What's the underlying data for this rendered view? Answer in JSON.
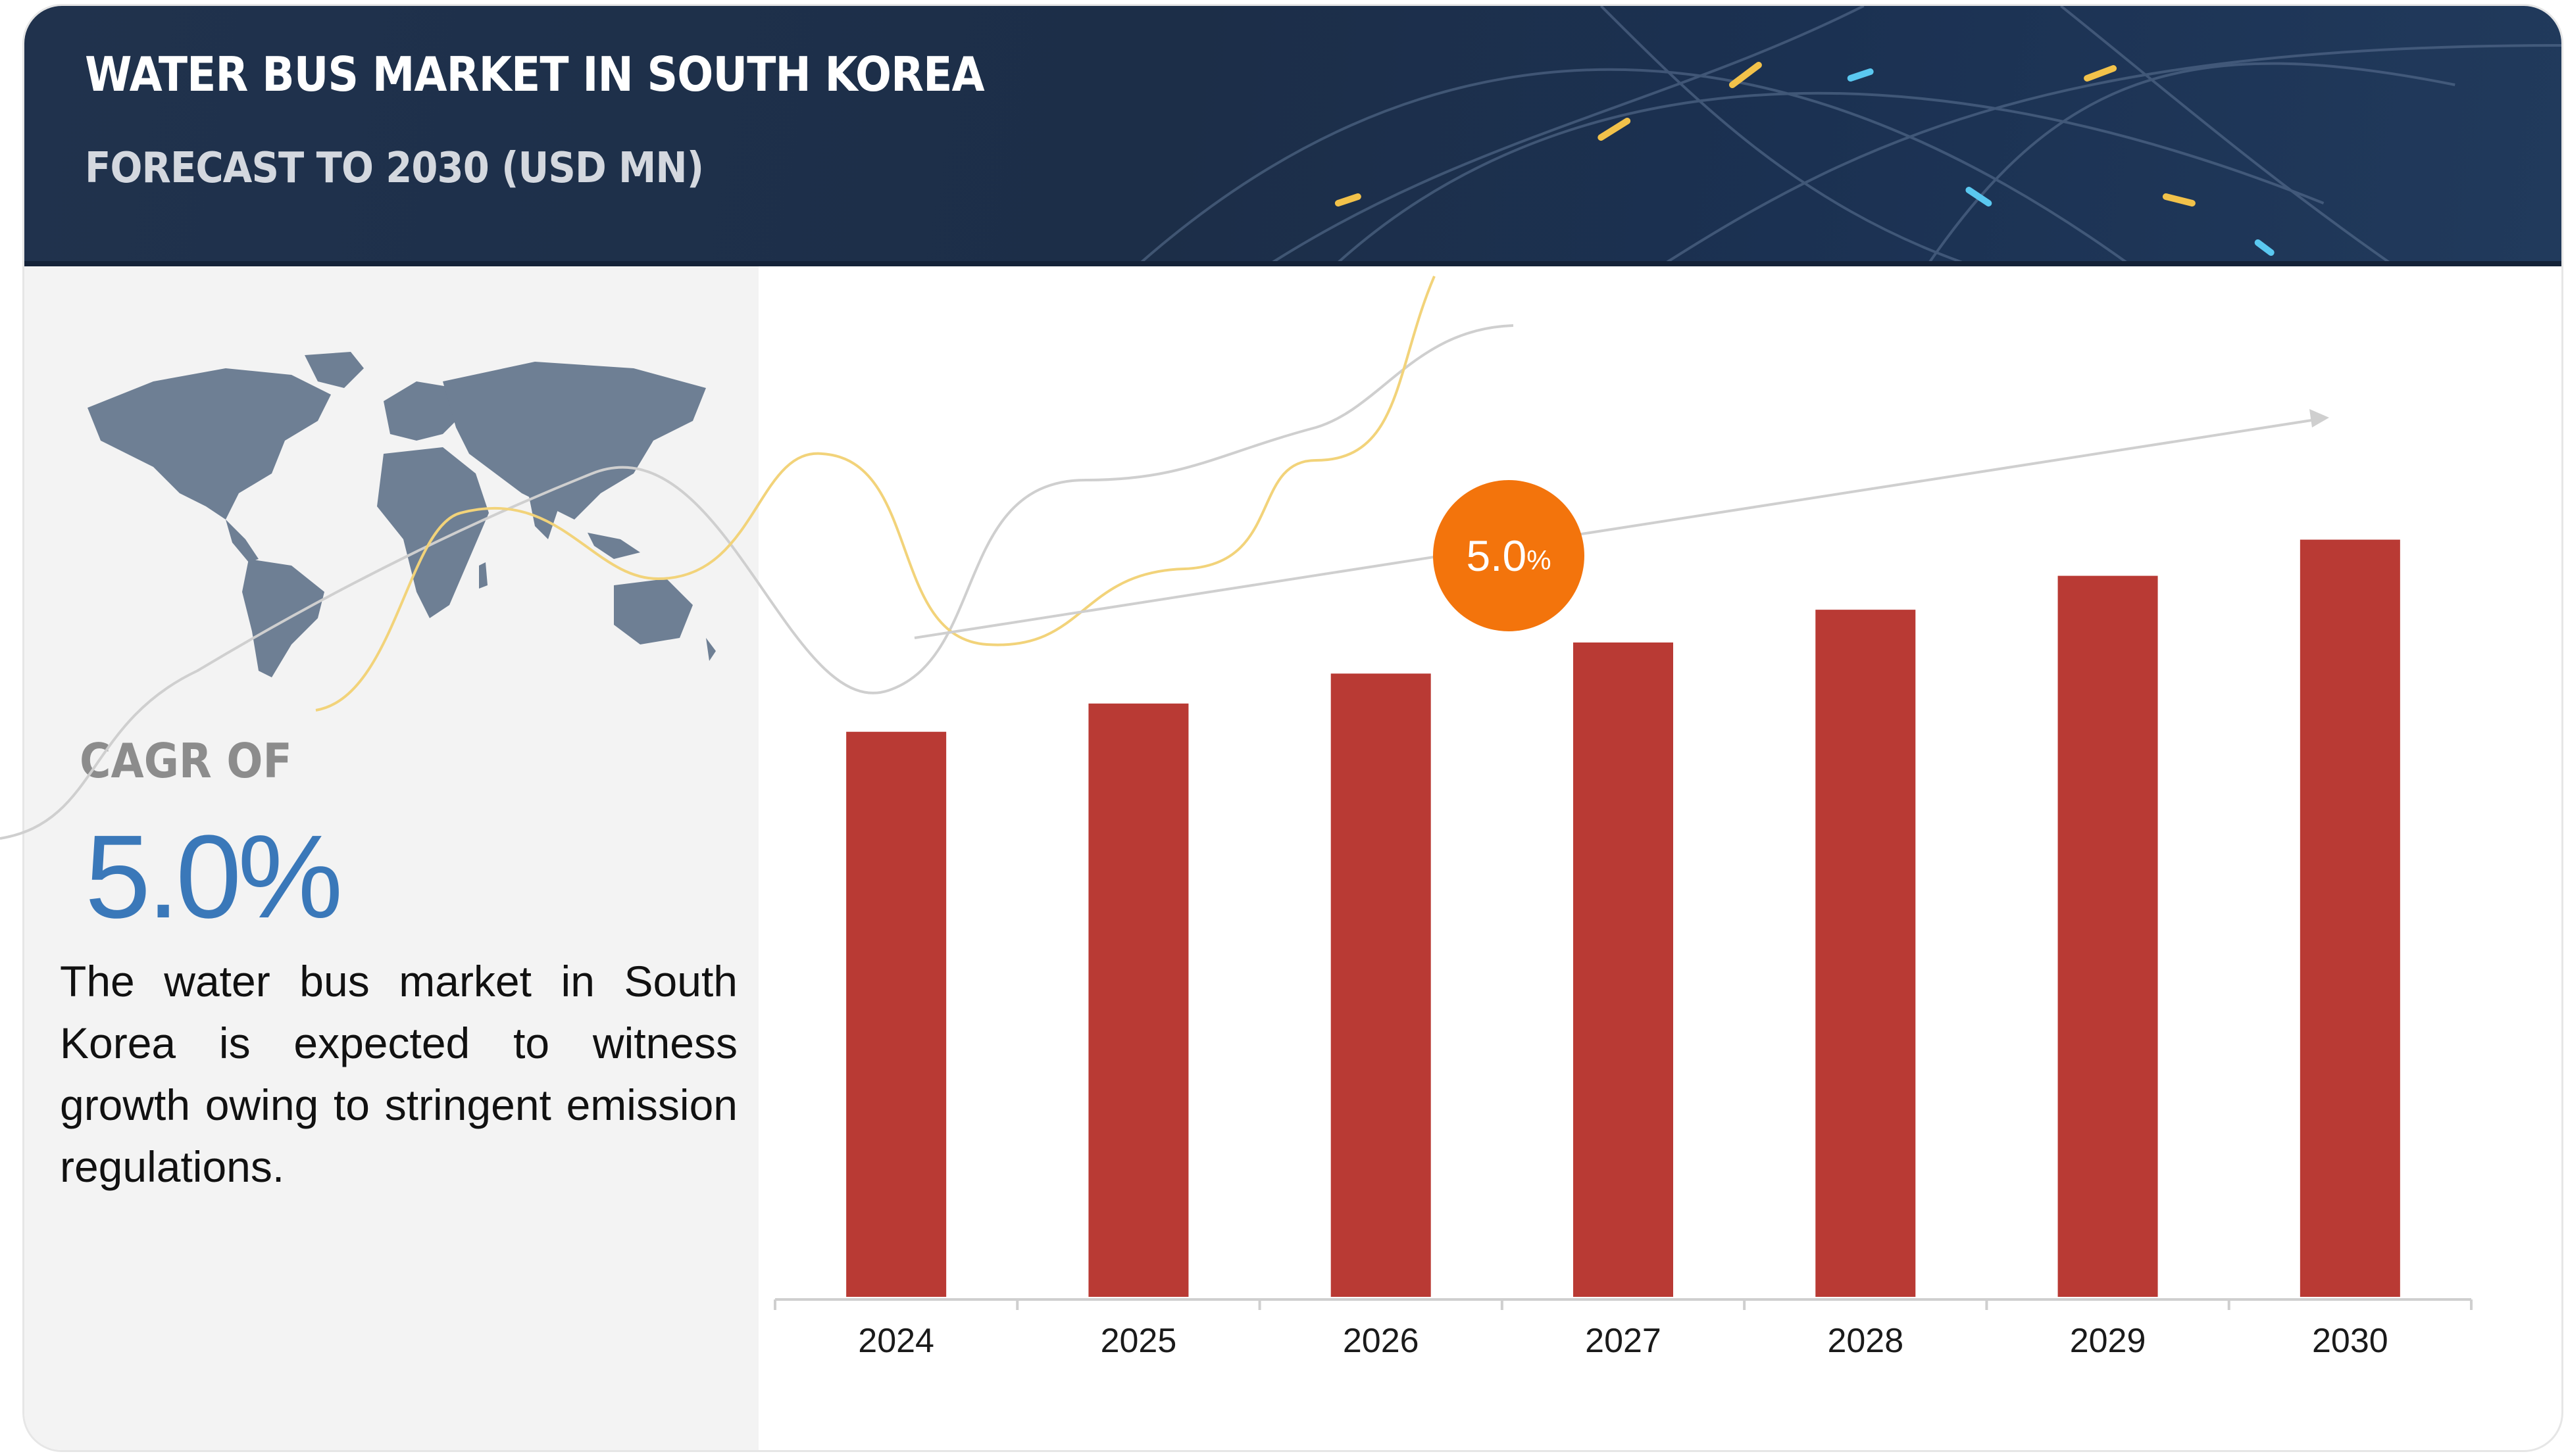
{
  "header": {
    "title": "WATER BUS MARKET IN SOUTH KOREA",
    "subtitle": "FORECAST TO 2030 (USD MN)"
  },
  "sidebar": {
    "cagr_label": "CAGR OF",
    "cagr_value": "5.0%",
    "description": "The water bus market in South Korea is expected to witness growth owing to stringent emission regulations."
  },
  "bubble": {
    "value": "5.0",
    "unit": "%"
  },
  "colors": {
    "bar": "#b93a34",
    "bubble": "#f3740c",
    "cagr_value": "#3a78b9",
    "header_bg": "#1c2e48"
  },
  "chart_data": {
    "type": "bar",
    "categories": [
      "2024",
      "2025",
      "2026",
      "2027",
      "2028",
      "2029",
      "2030"
    ],
    "values": [
      100,
      105,
      110.3,
      115.8,
      121.6,
      127.6,
      134
    ],
    "ylim": [
      0,
      135
    ],
    "grid": false,
    "y_axis_shown": false,
    "trend_arrow": true
  }
}
